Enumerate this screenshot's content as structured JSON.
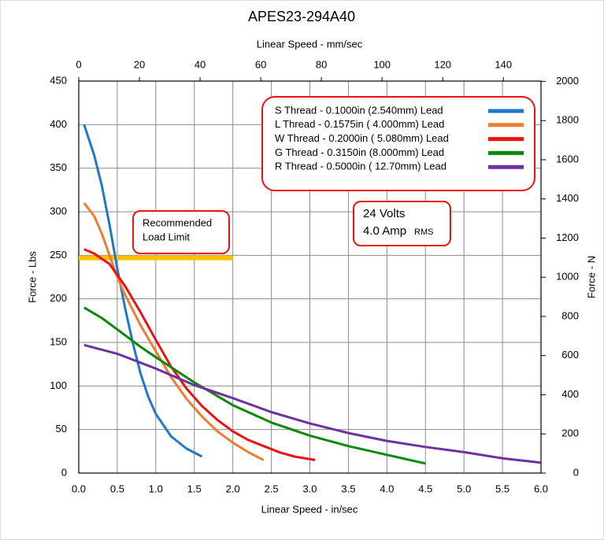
{
  "chart_data": {
    "type": "line",
    "title": "APES23-294A40",
    "xlabel": "Linear Speed - in/sec",
    "x2label": "Linear Speed - mm/sec",
    "ylabel": "Force - Lbs",
    "y2label": "Force - N",
    "xlim": [
      0,
      6
    ],
    "xticks": [
      {
        "value": 0,
        "label": "0.0"
      },
      0.5,
      {
        "value": 1,
        "label": "1.0"
      },
      1.5,
      {
        "value": 2,
        "label": "2.0"
      },
      2.5,
      {
        "value": 3,
        "label": "3.0"
      },
      3.5,
      {
        "value": 4,
        "label": "4.0"
      },
      4.5,
      {
        "value": 5,
        "label": "5.0"
      },
      5.5,
      {
        "value": 6,
        "label": "6.0"
      }
    ],
    "x2lim": [
      0,
      152.4
    ],
    "x2ticks": [
      0,
      20,
      40,
      60,
      80,
      100,
      120,
      140
    ],
    "ylim": [
      0,
      450
    ],
    "yticks": [
      0,
      50,
      100,
      150,
      200,
      250,
      300,
      350,
      400,
      450
    ],
    "y2lim": [
      0,
      2001.7
    ],
    "y2ticks": [
      0,
      200,
      400,
      600,
      800,
      1000,
      1200,
      1400,
      1600,
      1800,
      2000
    ],
    "grid": true,
    "series": [
      {
        "name": "S Thread -  0.1000in (2.540mm) Lead",
        "color": "#1f78c8",
        "x": [
          0.07,
          0.2,
          0.3,
          0.4,
          0.5,
          0.6,
          0.7,
          0.8,
          0.9,
          1.0,
          1.2,
          1.4,
          1.6
        ],
        "values": [
          400,
          365,
          330,
          285,
          235,
          190,
          150,
          115,
          88,
          68,
          42,
          28,
          19
        ]
      },
      {
        "name": "L Thread -  0.1575in ( 4.000mm) Lead",
        "color": "#ed7d31",
        "x": [
          0.07,
          0.2,
          0.3,
          0.4,
          0.5,
          0.6,
          0.8,
          1.0,
          1.2,
          1.4,
          1.6,
          1.8,
          2.0,
          2.2,
          2.4
        ],
        "values": [
          310,
          295,
          275,
          250,
          225,
          205,
          170,
          140,
          110,
          85,
          65,
          48,
          35,
          24,
          15
        ]
      },
      {
        "name": "W Thread - 0.2000in ( 5.080mm) Lead",
        "color": "#ee1111",
        "x": [
          0.07,
          0.2,
          0.4,
          0.6,
          0.8,
          1.0,
          1.2,
          1.4,
          1.6,
          1.8,
          2.0,
          2.2,
          2.4,
          2.6,
          2.8,
          3.07
        ],
        "values": [
          257,
          252,
          240,
          215,
          185,
          153,
          122,
          97,
          77,
          61,
          48,
          38,
          31,
          24,
          19,
          15
        ]
      },
      {
        "name": "G Thread - 0.3150in (8.000mm) Lead",
        "color": "#0a8a0a",
        "x": [
          0.07,
          0.3,
          0.5,
          0.8,
          1.0,
          1.5,
          2.0,
          2.5,
          3.0,
          3.5,
          4.0,
          4.5
        ],
        "values": [
          190,
          178,
          165,
          145,
          133,
          104,
          78,
          58,
          43,
          31,
          21,
          11
        ]
      },
      {
        "name": "R Thread - 0.5000in ( 12.70mm) Lead",
        "color": "#7030a0",
        "x": [
          0.07,
          0.5,
          1.0,
          1.5,
          2.0,
          2.5,
          3.0,
          3.5,
          4.0,
          4.5,
          5.0,
          5.5,
          6.0
        ],
        "values": [
          147,
          137,
          120,
          101,
          86,
          70,
          57,
          46,
          37,
          30,
          24,
          17,
          12
        ]
      }
    ],
    "load_limit": {
      "lines": [
        "Recommended",
        "Load Limit"
      ],
      "value": 247,
      "x": [
        0,
        2
      ],
      "color": "#ffc000"
    },
    "annotation": {
      "lines": [
        "24 Volts",
        "4.0 Amp"
      ],
      "suffix": "RMS"
    }
  }
}
